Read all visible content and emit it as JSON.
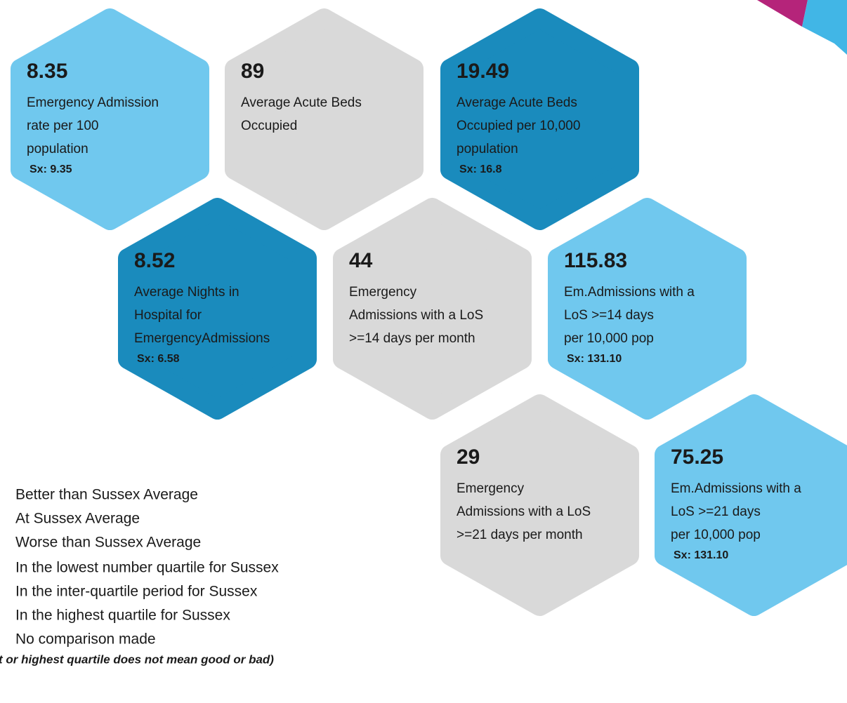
{
  "tiles": [
    {
      "value": "8.35",
      "lines": [
        "Emergency Admission",
        "rate per 100",
        "population"
      ],
      "sx": "Sx: 9.35",
      "color": "#70c8ee"
    },
    {
      "value": "89",
      "lines": [
        "Average Acute Beds",
        "Occupied"
      ],
      "color": "#d9d9d9"
    },
    {
      "value": "19.49",
      "lines": [
        "Average Acute Beds",
        "Occupied per 10,000",
        "population"
      ],
      "sx": "Sx: 16.8",
      "color": "#1a8bbd"
    },
    {
      "value": "8.52",
      "lines": [
        "Average Nights in",
        "Hospital for",
        "EmergencyAdmissions"
      ],
      "sx": "Sx: 6.58",
      "color": "#1a8bbd"
    },
    {
      "value": "44",
      "lines": [
        "Emergency",
        "Admissions with a LoS",
        ">=14 days per month"
      ],
      "color": "#d9d9d9"
    },
    {
      "value": "115.83",
      "lines": [
        "Em.Admissions with a",
        "LoS >=14 days",
        "per 10,000 pop"
      ],
      "sx": "Sx: 131.10",
      "color": "#70c8ee"
    },
    {
      "value": "29",
      "lines": [
        "Emergency",
        "Admissions with a LoS",
        ">=21 days per month"
      ],
      "color": "#d9d9d9"
    },
    {
      "value": "75.25",
      "lines": [
        "Em.Admissions with a",
        "LoS >=21 days",
        "per 10,000 pop"
      ],
      "sx": "Sx: 131.10",
      "color": "#70c8ee"
    }
  ],
  "legend": {
    "comparison": [
      "Better than Sussex Average",
      "At Sussex Average",
      "Worse than Sussex Average"
    ],
    "quartiles": [
      "In the lowest number quartile for Sussex",
      "In the inter-quartile period for Sussex",
      "In the highest quartile for Sussex",
      "No comparison made"
    ],
    "note": "t or highest quartile does not mean good or bad)"
  }
}
